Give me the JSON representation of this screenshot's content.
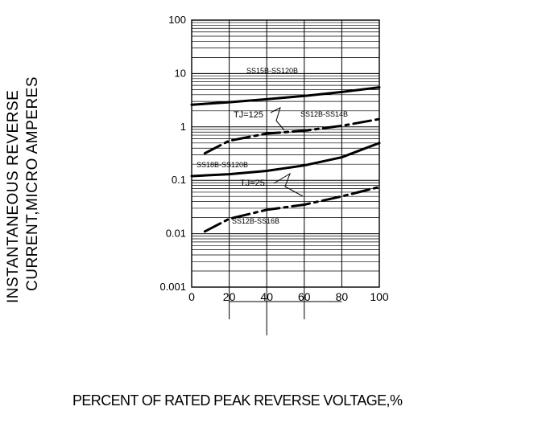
{
  "chart_data": {
    "type": "line",
    "xlabel": "PERCENT OF RATED PEAK REVERSE VOLTAGE,%",
    "ylabel_lines": [
      "INSTANTANEOUS REVERSE",
      "CURRENT,MICRO AMPERES"
    ],
    "x_scale": "linear",
    "y_scale": "log",
    "xlim": [
      0,
      100
    ],
    "ylim": [
      0.001,
      100
    ],
    "x_ticks": [
      "0",
      "20",
      "40",
      "60",
      "80",
      "100"
    ],
    "y_ticks": [
      "100",
      "10",
      "1",
      "0.1",
      "0.01",
      "0.001"
    ],
    "grid": true,
    "annotations": {
      "tj125": "TJ=125",
      "tj25": "TJ=25",
      "ss15b": "SS15B-SS120B",
      "ss12b_14b": "SS12B-SS14B",
      "ss18b": "SS18B-SS120B",
      "ss12b_16b": "SS12B-SS16B"
    },
    "series": [
      {
        "name": "SS15B-SS120B",
        "style": "solid",
        "x": [
          0,
          20,
          40,
          60,
          80,
          100
        ],
        "y": [
          2.6,
          2.9,
          3.3,
          3.8,
          4.5,
          5.5
        ]
      },
      {
        "name": "SS12B-SS14B",
        "style": "dashed",
        "x": [
          7,
          20,
          40,
          60,
          80,
          100
        ],
        "y": [
          0.32,
          0.55,
          0.75,
          0.85,
          1.05,
          1.4
        ]
      },
      {
        "name": "SS18B-SS120B",
        "style": "solid",
        "x": [
          0,
          20,
          40,
          60,
          80,
          100
        ],
        "y": [
          0.12,
          0.13,
          0.15,
          0.19,
          0.27,
          0.5
        ]
      },
      {
        "name": "SS12B-SS16B",
        "style": "dashed",
        "x": [
          7,
          20,
          40,
          60,
          80,
          100
        ],
        "y": [
          0.011,
          0.019,
          0.028,
          0.035,
          0.05,
          0.075
        ]
      }
    ]
  }
}
